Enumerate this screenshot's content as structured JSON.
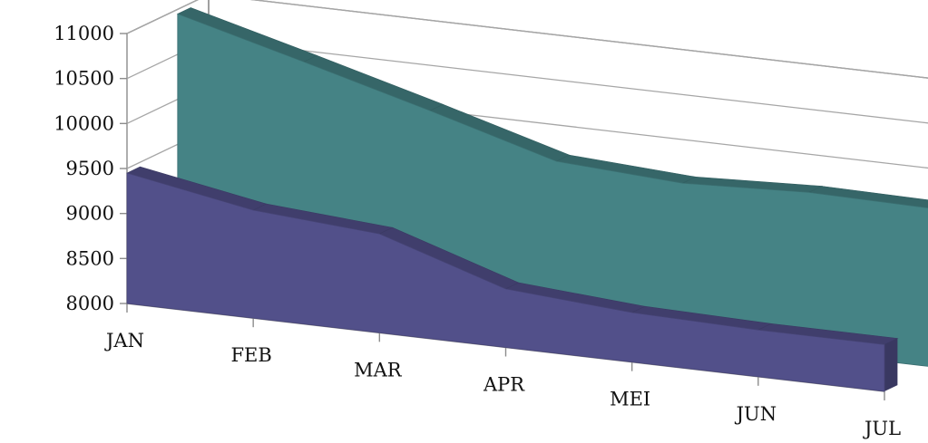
{
  "chart_data": {
    "type": "area",
    "subtype": "3d-area",
    "categories": [
      "JAN",
      "FEB",
      "MAR",
      "APR",
      "MEI",
      "JUN",
      "JUL"
    ],
    "y_ticks": [
      "8000",
      "8500",
      "9000",
      "9500",
      "10000",
      "10500",
      "11000"
    ],
    "ylim": [
      8000,
      11000
    ],
    "grid": true,
    "legend": "none",
    "series": [
      {
        "values": [
          10950,
          10580,
          10200,
          9800,
          9720,
          9780,
          9760
        ],
        "color": "#458385"
      },
      {
        "values": [
          9450,
          9200,
          9100,
          8650,
          8550,
          8520,
          8520
        ],
        "color": "#52508a"
      }
    ]
  }
}
